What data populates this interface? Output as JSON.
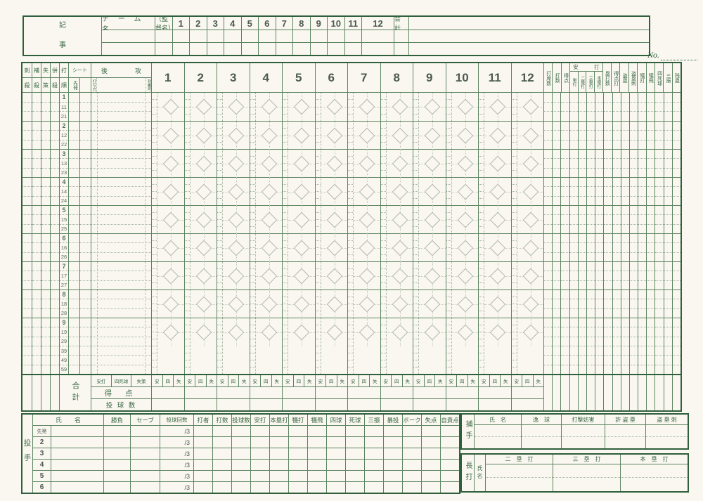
{
  "colors": {
    "line_green": "#5d8562",
    "dark_green": "#2f5f3c",
    "text_green": "#3c6847"
  },
  "top_table": {
    "team_header": "チ ー ム 名",
    "manager_header": "（監督名）",
    "innings": [
      "1",
      "2",
      "3",
      "4",
      "5",
      "6",
      "7",
      "8",
      "9",
      "10",
      "11",
      "12"
    ],
    "total_label": "合 計",
    "notes_label_chars": [
      "記",
      "事"
    ],
    "no_label": "No."
  },
  "main_grid": {
    "fielding_columns": [
      "刺殺",
      "補殺",
      "失策",
      "併殺"
    ],
    "order_column": "打順",
    "seat_header": "シート",
    "starter_label": "先発",
    "name_header": [
      "後",
      "攻"
    ],
    "batting_style_label": "打ち方",
    "uniform_number_label": "背番号",
    "innings": [
      "1",
      "2",
      "3",
      "4",
      "5",
      "6",
      "7",
      "8",
      "9",
      "10",
      "11",
      "12"
    ],
    "summary_columns_left": [
      "打席数",
      "打数",
      "得点"
    ],
    "hits_group": {
      "label": [
        "安",
        "打"
      ],
      "columns": [
        "単打",
        "二塁打",
        "三塁打",
        "本塁打"
      ]
    },
    "summary_columns_right": [
      "塁打数",
      "得点打",
      "盗塁",
      "盗塁刺",
      "犠打",
      "犠飛",
      "四死球",
      "三振",
      "残塁"
    ],
    "batting_order_groups": [
      [
        "1",
        "11",
        "21"
      ],
      [
        "2",
        "12",
        "22"
      ],
      [
        "3",
        "13",
        "23"
      ],
      [
        "4",
        "14",
        "24"
      ],
      [
        "5",
        "15",
        "25"
      ],
      [
        "6",
        "16",
        "26"
      ],
      [
        "7",
        "17",
        "27"
      ],
      [
        "8",
        "18",
        "28"
      ],
      [
        "9",
        "19",
        "29",
        "39",
        "49",
        "59"
      ]
    ],
    "totals": {
      "label": "合計",
      "column_headers": [
        "安打",
        "四死球",
        "失策"
      ],
      "inning_sub_headers": [
        "安",
        "四",
        "失"
      ],
      "score_row_label": "得 点",
      "pitch_count_row_label": "投 球 数"
    }
  },
  "pitcher_table": {
    "side_label": "投手",
    "name_header": "氏　　名",
    "headers": [
      "勝負",
      "セーブ",
      "投球回数",
      "打者",
      "打数",
      "投球数",
      "安打",
      "本塁打",
      "犠打",
      "犠飛",
      "四球",
      "死球",
      "三振",
      "暴投",
      "ボーク",
      "失点",
      "自責点"
    ],
    "row_labels": [
      "先発",
      "2",
      "3",
      "4",
      "5",
      "6"
    ],
    "innings_value": "/3"
  },
  "catcher_table": {
    "side_label": "捕手",
    "headers": [
      "氏　名",
      "逸　球",
      "打撃妨害",
      "許 盗 塁",
      "盗 塁 刺"
    ]
  },
  "slugging_table": {
    "side_label": "長打",
    "name_label": "氏名",
    "headers": [
      "二　塁　打",
      "三　塁　打",
      "本　塁　打"
    ]
  }
}
